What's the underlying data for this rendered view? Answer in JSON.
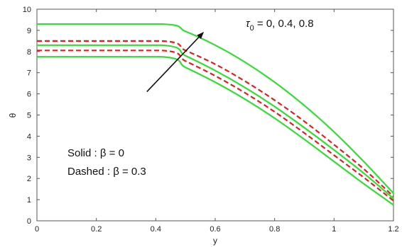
{
  "chart_data": {
    "type": "line",
    "xlabel": "y",
    "ylabel": "θ",
    "xlim": [
      0,
      1.2
    ],
    "ylim": [
      0,
      10
    ],
    "x_ticks": [
      "0",
      "0.2",
      "0.4",
      "0.6",
      "0.8",
      "1",
      "1.2"
    ],
    "y_ticks": [
      "0",
      "1",
      "2",
      "3",
      "4",
      "5",
      "6",
      "7",
      "8",
      "9",
      "10"
    ],
    "colors": {
      "solid": "#33dd33",
      "dashed": "#e02020"
    },
    "series": [
      {
        "style": "solid",
        "x": [
          0,
          0.42,
          0.5,
          0.6,
          0.7,
          0.8,
          0.9,
          1.0,
          1.1,
          1.2
        ],
        "values": [
          7.75,
          7.75,
          7.25,
          6.55,
          5.75,
          4.85,
          3.85,
          2.8,
          1.75,
          0.75
        ]
      },
      {
        "style": "dashed",
        "x": [
          0,
          0.42,
          0.5,
          0.6,
          0.7,
          0.8,
          0.9,
          1.0,
          1.1,
          1.2
        ],
        "values": [
          8.05,
          8.05,
          7.55,
          6.85,
          6.05,
          5.15,
          4.15,
          3.1,
          2.05,
          0.95
        ]
      },
      {
        "style": "solid",
        "x": [
          0,
          0.42,
          0.5,
          0.6,
          0.7,
          0.8,
          0.9,
          1.0,
          1.1,
          1.2
        ],
        "values": [
          8.3,
          8.3,
          7.8,
          7.1,
          6.3,
          5.4,
          4.4,
          3.35,
          2.25,
          1.05
        ]
      },
      {
        "style": "dashed",
        "x": [
          0,
          0.42,
          0.5,
          0.6,
          0.7,
          0.8,
          0.9,
          1.0,
          1.1,
          1.2
        ],
        "values": [
          8.5,
          8.5,
          8.05,
          7.4,
          6.6,
          5.7,
          4.7,
          3.6,
          2.45,
          1.15
        ]
      },
      {
        "style": "solid",
        "x": [
          0,
          0.42,
          0.5,
          0.6,
          0.7,
          0.8,
          0.9,
          1.0,
          1.1,
          1.2
        ],
        "values": [
          9.3,
          9.3,
          8.95,
          8.3,
          7.5,
          6.55,
          5.45,
          4.2,
          2.8,
          1.3
        ]
      }
    ],
    "annotations": {
      "tau_text": "τ",
      "tau_sub": "0",
      "tau_values": " = 0, 0.4, 0.8",
      "solid_label": "Solid : β = 0",
      "dashed_label": "Dashed : β = 0.3"
    },
    "arrow": {
      "from": [
        0.37,
        6.1
      ],
      "to": [
        0.56,
        8.9
      ]
    }
  }
}
